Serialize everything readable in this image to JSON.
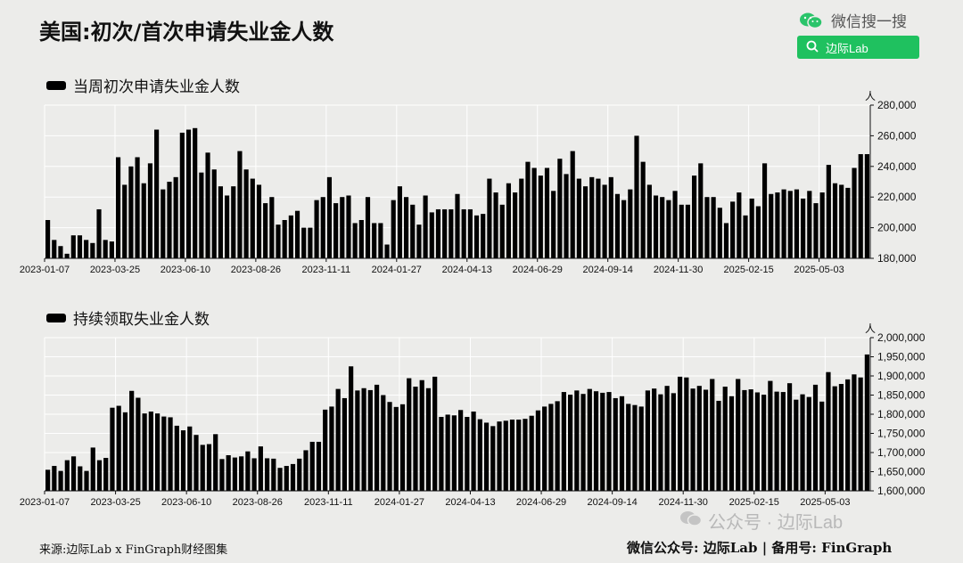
{
  "title": "美国:初次/首次申请失业金人数",
  "brand": {
    "name": "微信搜一搜",
    "search_label": "边际Lab"
  },
  "footer": {
    "source": "来源:边际Lab x FinGraph财经图集",
    "account": "微信公众号: 边际Lab  |  备用号: FinGraph"
  },
  "watermark": "公众号 · 边际Lab",
  "colors": {
    "bar": "#000000",
    "background": "#ececea",
    "grid": "#ffffff",
    "brand": "#1fc15f"
  },
  "chart_data": [
    {
      "type": "bar",
      "title": "当周初次申请失业金人数",
      "unit": "人",
      "ylim": [
        180000,
        280000
      ],
      "yticks": [
        180000,
        200000,
        220000,
        240000,
        260000,
        280000
      ],
      "ytick_labels": [
        "180,000",
        "200,000",
        "220,000",
        "240,000",
        "260,000",
        "280,000"
      ],
      "xtick_labels": [
        "2023-01-07",
        "2023-03-25",
        "2023-06-10",
        "2023-08-26",
        "2023-11-11",
        "2024-01-27",
        "2024-04-13",
        "2024-06-29",
        "2024-09-14",
        "2024-11-30",
        "2025-02-15",
        "2025-05-03"
      ],
      "grid": true,
      "legend": "top-left",
      "values": [
        205000,
        192000,
        188000,
        183000,
        195000,
        195000,
        192000,
        190000,
        212000,
        192000,
        191000,
        246000,
        228000,
        240000,
        246000,
        229000,
        242000,
        264000,
        225000,
        230000,
        233000,
        262000,
        264000,
        265000,
        236000,
        249000,
        238000,
        227000,
        221000,
        227000,
        250000,
        238000,
        232000,
        228000,
        216000,
        220000,
        202000,
        205000,
        208000,
        211000,
        200000,
        200000,
        218000,
        220000,
        233000,
        216000,
        220000,
        221000,
        203000,
        205000,
        220000,
        203000,
        203000,
        189000,
        218000,
        227000,
        220000,
        215000,
        202000,
        221000,
        210000,
        212000,
        212000,
        212000,
        222000,
        212000,
        212000,
        208000,
        209000,
        232000,
        223000,
        215000,
        229000,
        223000,
        232000,
        243000,
        239000,
        234000,
        239000,
        224000,
        245000,
        235000,
        250000,
        232000,
        227000,
        233000,
        232000,
        228000,
        233000,
        222000,
        218000,
        225000,
        260000,
        243000,
        228000,
        221000,
        220000,
        218000,
        224000,
        215000,
        215000,
        234000,
        242000,
        220000,
        220000,
        213000,
        203000,
        217000,
        223000,
        208000,
        219000,
        214000,
        242000,
        222000,
        223000,
        225000,
        224000,
        225000,
        219000,
        224000,
        216000,
        223000,
        241000,
        229000,
        228000,
        226000,
        239000,
        248000,
        248000
      ]
    },
    {
      "type": "bar",
      "title": "持续领取失业金人数",
      "unit": "人",
      "ylim": [
        1600000,
        2000000
      ],
      "yticks": [
        1600000,
        1650000,
        1700000,
        1750000,
        1800000,
        1850000,
        1900000,
        1950000,
        2000000
      ],
      "ytick_labels": [
        "1,600,000",
        "1,650,000",
        "1,700,000",
        "1,750,000",
        "1,800,000",
        "1,850,000",
        "1,900,000",
        "1,950,000",
        "2,000,000"
      ],
      "xtick_labels": [
        "2023-01-07",
        "2023-03-25",
        "2023-06-10",
        "2023-08-26",
        "2023-11-11",
        "2024-01-27",
        "2024-04-13",
        "2024-06-29",
        "2024-09-14",
        "2024-11-30",
        "2025-02-15",
        "2025-05-03"
      ],
      "grid": true,
      "legend": "top-left",
      "values": [
        1655000,
        1665000,
        1652000,
        1680000,
        1690000,
        1664000,
        1652000,
        1713000,
        1680000,
        1686000,
        1817000,
        1822000,
        1805000,
        1861000,
        1843000,
        1802000,
        1807000,
        1802000,
        1794000,
        1792000,
        1770000,
        1758000,
        1768000,
        1746000,
        1720000,
        1722000,
        1748000,
        1683000,
        1693000,
        1687000,
        1690000,
        1703000,
        1685000,
        1716000,
        1685000,
        1684000,
        1660000,
        1665000,
        1670000,
        1684000,
        1706000,
        1728000,
        1728000,
        1812000,
        1820000,
        1866000,
        1842000,
        1925000,
        1862000,
        1868000,
        1863000,
        1877000,
        1850000,
        1832000,
        1819000,
        1826000,
        1894000,
        1872000,
        1889000,
        1868000,
        1898000,
        1793000,
        1799000,
        1797000,
        1811000,
        1793000,
        1807000,
        1787000,
        1778000,
        1769000,
        1781000,
        1783000,
        1786000,
        1786000,
        1788000,
        1796000,
        1810000,
        1820000,
        1827000,
        1834000,
        1858000,
        1851000,
        1862000,
        1853000,
        1866000,
        1860000,
        1856000,
        1858000,
        1842000,
        1847000,
        1827000,
        1824000,
        1820000,
        1862000,
        1867000,
        1852000,
        1874000,
        1855000,
        1898000,
        1896000,
        1867000,
        1874000,
        1864000,
        1892000,
        1835000,
        1872000,
        1847000,
        1892000,
        1863000,
        1865000,
        1857000,
        1851000,
        1887000,
        1859000,
        1858000,
        1881000,
        1838000,
        1852000,
        1845000,
        1877000,
        1833000,
        1910000,
        1873000,
        1879000,
        1891000,
        1904000,
        1896000,
        1956000
      ]
    }
  ]
}
